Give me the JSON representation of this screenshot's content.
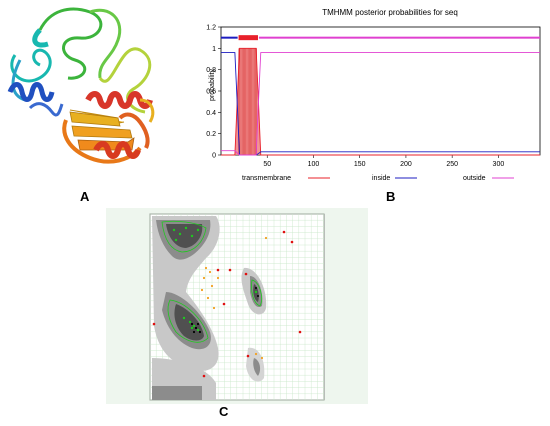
{
  "panels": {
    "a": {
      "label": "A"
    },
    "b": {
      "label": "B"
    },
    "c": {
      "label": "C"
    }
  },
  "chart_data": {
    "type": "line",
    "title": "TMHMM posterior probabilities for seq",
    "ylabel": "probability",
    "xlabel": "",
    "xlim": [
      0,
      345
    ],
    "ylim": [
      0,
      1.2
    ],
    "x_ticks": [
      50,
      100,
      150,
      200,
      250,
      300
    ],
    "y_ticks": [
      0,
      0.2,
      0.4,
      0.6,
      0.8,
      1,
      1.2
    ],
    "grid": false,
    "legend_position": "bottom",
    "series": [
      {
        "name": "transmembrane",
        "color": "#e8202a",
        "x": [
          0,
          15,
          18,
          20,
          38,
          40,
          43,
          345
        ],
        "y": [
          0,
          0,
          0.6,
          1.0,
          1.0,
          0.6,
          0,
          0
        ]
      },
      {
        "name": "inside",
        "color": "#1c1cc0",
        "x": [
          0,
          15,
          18,
          20,
          38,
          40,
          43,
          345
        ],
        "y": [
          0.96,
          0.96,
          0.4,
          0,
          0,
          0.01,
          0.03,
          0.03
        ]
      },
      {
        "name": "outside",
        "color": "#e040d0",
        "x": [
          0,
          15,
          20,
          38,
          40,
          43,
          345
        ],
        "y": [
          0.04,
          0.04,
          0,
          0,
          0.4,
          0.96,
          0.96
        ]
      }
    ],
    "topology_bars": [
      {
        "region": "inside",
        "start": 0,
        "end": 18,
        "color": "#1c1cc0"
      },
      {
        "region": "transmembrane",
        "start": 19,
        "end": 40,
        "color": "#e8202a"
      },
      {
        "region": "outside",
        "start": 41,
        "end": 345,
        "color": "#e040d0"
      }
    ]
  },
  "colors": {
    "helix_red": "#d8362a",
    "helix_orange": "#f08a1c",
    "sheet_yellow": "#e8b020",
    "coil_green": "#3cb43c",
    "coil_lime": "#b4d23c",
    "helix_blue": "#2050c0",
    "coil_cyan": "#18b8b0",
    "rama_dark": "#505050",
    "rama_mid": "#8c8c8c",
    "rama_light": "#c8c8c8",
    "rama_grid": "#c8e6c8",
    "rama_green_pts": "#1fc81f",
    "rama_orange_pts": "#f0a020",
    "rama_red_pts": "#e01010"
  }
}
